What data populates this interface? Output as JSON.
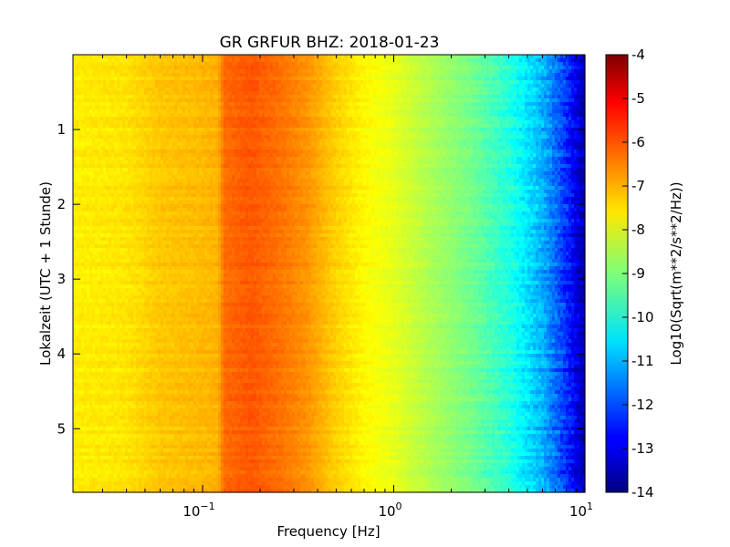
{
  "chart_data": {
    "type": "heatmap",
    "title": "GR GRFUR BHZ: 2018-01-23",
    "xlabel": "Frequency [Hz]",
    "ylabel": "Lokalzeit (UTC + 1 Stunde)",
    "colorbar_label": "Log10(Sqrt(m**2/s**2/Hz))",
    "x_scale": "log",
    "xlim": [
      0.021,
      10
    ],
    "ylim": [
      5.85,
      0.0
    ],
    "x_ticks": [
      {
        "value": 0.1,
        "base": "10",
        "exp": "−1"
      },
      {
        "value": 1,
        "base": "10",
        "exp": "0"
      },
      {
        "value": 10,
        "base": "10",
        "exp": "1"
      }
    ],
    "y_ticks": [
      {
        "value": 1,
        "label": "1"
      },
      {
        "value": 2,
        "label": "2"
      },
      {
        "value": 3,
        "label": "3"
      },
      {
        "value": 4,
        "label": "4"
      },
      {
        "value": 5,
        "label": "5"
      }
    ],
    "colorbar_range": [
      -14,
      -4
    ],
    "colorbar_ticks": [
      "-4",
      "-5",
      "-6",
      "-7",
      "-8",
      "-9",
      "-10",
      "-11",
      "-12",
      "-13",
      "-14"
    ],
    "colormap": "jet",
    "spectrum_profile": {
      "frequency_hz": [
        0.021,
        0.04,
        0.06,
        0.09,
        0.12,
        0.13,
        0.18,
        0.25,
        0.35,
        0.5,
        0.7,
        1.0,
        1.5,
        2.5,
        4.0,
        6.0,
        8.0,
        10.0
      ],
      "log10_amplitude": [
        -7.6,
        -7.5,
        -7.2,
        -7.1,
        -7.0,
        -6.3,
        -6.1,
        -6.35,
        -6.7,
        -7.3,
        -7.7,
        -8.0,
        -8.5,
        -9.1,
        -9.9,
        -11.0,
        -12.3,
        -13.6
      ]
    }
  }
}
